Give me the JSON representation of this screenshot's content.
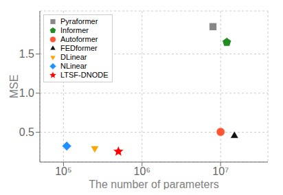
{
  "chart_data": {
    "type": "scatter",
    "x_label": "The number of parameters",
    "y_label": "MSE",
    "log": "x",
    "grid": true,
    "legend": "upper left",
    "xlim": [
      50000,
      40000000
    ],
    "xticks": [
      {
        "value": 100000,
        "label": "10⁵"
      },
      {
        "value": 1000000,
        "label": "10⁶"
      },
      {
        "value": 10000000,
        "label": "10⁷"
      }
    ],
    "ylim": [
      0.12,
      2.05
    ],
    "yticks": [
      0.5,
      {
        "value": 1.0,
        "label": "1.0"
      },
      1.5
    ],
    "series": [
      {
        "name": "Pyraformer",
        "color": "#888888",
        "marker": "square",
        "x": [
          8000000
        ],
        "values": [
          1.85
        ]
      },
      {
        "name": "Informer",
        "color": "#228B22",
        "marker": "pentagon",
        "x": [
          12000000
        ],
        "values": [
          1.65
        ]
      },
      {
        "name": "Autoformer",
        "color": "#FF5533",
        "marker": "circle",
        "x": [
          10000000
        ],
        "values": [
          0.505
        ]
      },
      {
        "name": "FEDformer",
        "color": "#111111",
        "marker": "triangle",
        "x": [
          15000000
        ],
        "values": [
          0.455
        ]
      },
      {
        "name": "DLinear",
        "color": "#FFA500",
        "marker": "triangle_down",
        "x": [
          250000
        ],
        "values": [
          0.295
        ]
      },
      {
        "name": "NLinear",
        "color": "#1E90FF",
        "marker": "diamond",
        "x": [
          110000
        ],
        "values": [
          0.325
        ]
      },
      {
        "name": "LTSF-DNODE",
        "color": "#FF0000",
        "marker": "star",
        "x": [
          500000
        ],
        "values": [
          0.255
        ]
      }
    ]
  }
}
